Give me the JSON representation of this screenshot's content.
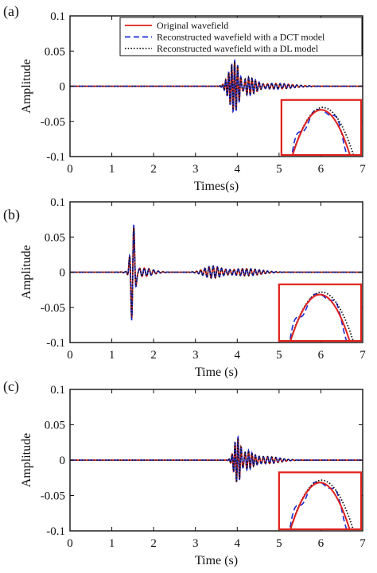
{
  "legend": {
    "entries": [
      {
        "label": "Original wavefield",
        "color": "#e0201b",
        "style": "solid"
      },
      {
        "label": "Reconstructed wavefield with a DCT model",
        "color": "#1a2bd6",
        "style": "dashed"
      },
      {
        "label": "Reconstructed wavefield with a DL model",
        "color": "#111111",
        "style": "dotted"
      }
    ],
    "placement": "top-right"
  },
  "chart_data": [
    {
      "type": "line",
      "panel_label": "(a)",
      "xlabel": "Times(s)",
      "ylabel": "Amplitude",
      "xlim": [
        0,
        7
      ],
      "ylim": [
        -0.1,
        0.1
      ],
      "xticks": [
        0,
        1,
        2,
        3,
        4,
        5,
        6,
        7
      ],
      "yticks": [
        -0.1,
        -0.05,
        0,
        0.05,
        0.1
      ],
      "ytick_labels": [
        "-0.1",
        "-0.05",
        "0",
        "0.05",
        "0.1"
      ],
      "grid": false,
      "has_legend": true,
      "inset": true,
      "signal": {
        "description": "burst",
        "bursts": [
          {
            "t0": 3.92,
            "amplitude": 0.034,
            "width": 0.12,
            "freq": 14
          },
          {
            "t0": 4.25,
            "amplitude": 0.014,
            "width": 0.16,
            "freq": 12
          },
          {
            "t0": 4.9,
            "amplitude": 0.004,
            "width": 0.4,
            "freq": 10
          }
        ],
        "min": -0.042,
        "max": 0.035
      },
      "series": [
        {
          "name": "Original wavefield",
          "color": "#e0201b"
        },
        {
          "name": "Reconstructed wavefield with a DCT model",
          "color": "#1a2bd6"
        },
        {
          "name": "Reconstructed wavefield with a DL model",
          "color": "#111111"
        }
      ]
    },
    {
      "type": "line",
      "panel_label": "(b)",
      "xlabel": "Time (s)",
      "ylabel": "Amplitude",
      "xlim": [
        0,
        7
      ],
      "ylim": [
        -0.1,
        0.1
      ],
      "xticks": [
        0,
        1,
        2,
        3,
        4,
        5,
        6,
        7
      ],
      "yticks": [
        -0.1,
        -0.05,
        0,
        0.05,
        0.1
      ],
      "ytick_labels": [
        "-0.1",
        "-0.05",
        "0",
        "0.05",
        "0.1"
      ],
      "grid": false,
      "has_legend": false,
      "inset": true,
      "signal": {
        "bursts": [
          {
            "t0": 1.5,
            "amplitude": 0.075,
            "width": 0.05,
            "freq": 9
          },
          {
            "t0": 1.75,
            "amplitude": 0.006,
            "width": 0.22,
            "freq": 9
          },
          {
            "t0": 3.4,
            "amplitude": 0.008,
            "width": 0.2,
            "freq": 10
          },
          {
            "t0": 4.2,
            "amplitude": 0.005,
            "width": 0.35,
            "freq": 10
          }
        ],
        "min": -0.093,
        "max": 0.072
      },
      "series": [
        {
          "name": "Original wavefield",
          "color": "#e0201b"
        },
        {
          "name": "Reconstructed wavefield with a DCT model",
          "color": "#1a2bd6"
        },
        {
          "name": "Reconstructed wavefield with a DL model",
          "color": "#111111"
        }
      ]
    },
    {
      "type": "line",
      "panel_label": "(c)",
      "xlabel": "Time (s)",
      "ylabel": "Amplitude",
      "xlim": [
        0,
        7
      ],
      "ylim": [
        -0.1,
        0.1
      ],
      "xticks": [
        0,
        1,
        2,
        3,
        4,
        5,
        6,
        7
      ],
      "yticks": [
        -0.1,
        -0.05,
        0,
        0.05,
        0.1
      ],
      "ytick_labels": [
        "-0.1",
        "-0.05",
        "0",
        "0.05",
        "0.1"
      ],
      "grid": false,
      "has_legend": false,
      "inset": true,
      "signal": {
        "bursts": [
          {
            "t0": 4.0,
            "amplitude": 0.03,
            "width": 0.08,
            "freq": 14
          },
          {
            "t0": 4.25,
            "amplitude": 0.015,
            "width": 0.12,
            "freq": 12
          },
          {
            "t0": 4.7,
            "amplitude": 0.005,
            "width": 0.3,
            "freq": 10
          }
        ],
        "min": -0.03,
        "max": 0.03
      },
      "series": [
        {
          "name": "Original wavefield",
          "color": "#e0201b"
        },
        {
          "name": "Reconstructed wavefield with a DCT model",
          "color": "#1a2bd6"
        },
        {
          "name": "Reconstructed wavefield with a DL model",
          "color": "#111111"
        }
      ]
    }
  ]
}
